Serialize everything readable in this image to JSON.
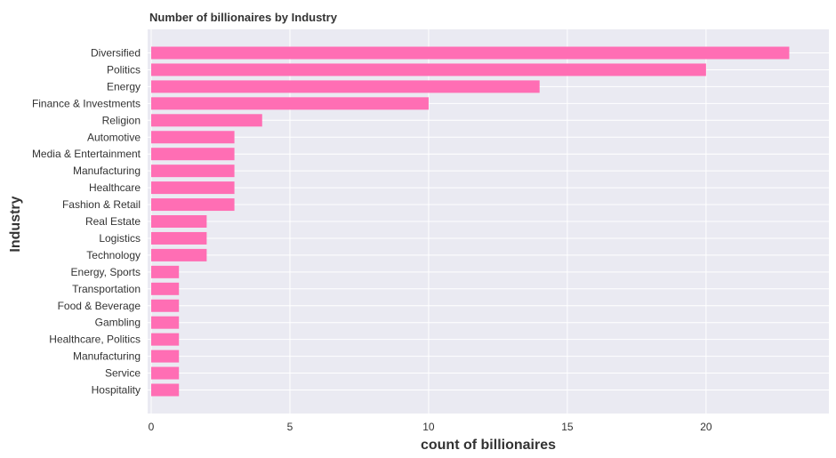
{
  "chart_data": {
    "type": "bar",
    "orientation": "horizontal",
    "title": "Number of billionaires by Industry",
    "xlabel": "count of billionaires",
    "ylabel": "Industry",
    "categories": [
      "Diversified",
      "Politics",
      "Energy",
      "Finance & Investments",
      "Religion",
      "Automotive",
      "Media & Entertainment",
      "Manufacturing",
      "Healthcare",
      "Fashion & Retail",
      "Real Estate",
      "Logistics",
      "Technology",
      "Energy, Sports",
      "Transportation",
      "Food & Beverage",
      "Gambling",
      "Healthcare, Politics",
      "Manufacturing ",
      "Service",
      "Hospitality"
    ],
    "values": [
      23,
      20,
      14,
      10,
      4,
      3,
      3,
      3,
      3,
      3,
      2,
      2,
      2,
      1,
      1,
      1,
      1,
      1,
      1,
      1,
      1
    ],
    "xlim": [
      0,
      24.3
    ],
    "xticks": [
      0,
      5,
      10,
      15,
      20
    ],
    "grid": true,
    "bar_color": "#ff6eb4",
    "background_color": "#eaeaf2",
    "grid_color": "#ffffff"
  }
}
